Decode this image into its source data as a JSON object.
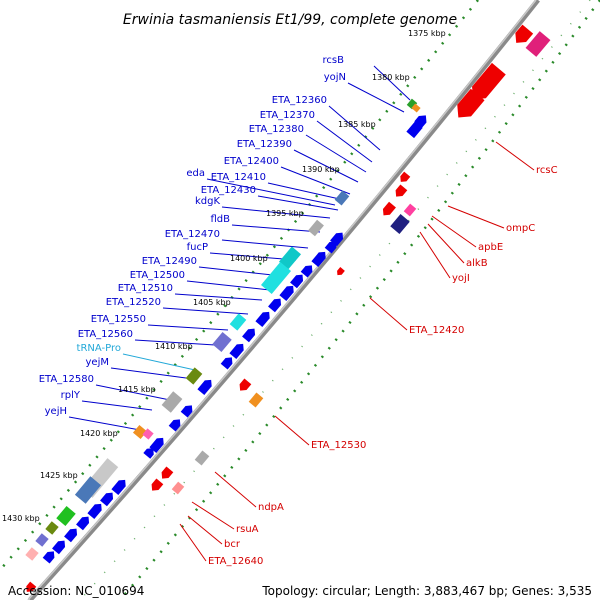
{
  "title": "Erwinia tasmaniensis Et1/99, complete genome",
  "accession": "Accession: NC_010694",
  "topology": "Topology: circular; Length: 3,883,467 bp; Genes: 3,535",
  "colors": {
    "forward": "#0000ee",
    "reverse": "#ee0000",
    "backbone": "#888888",
    "tick_dots": "#228822",
    "label_forward": "#0000cc",
    "label_reverse": "#d40000",
    "label_trna": "#22a8d8"
  },
  "kbp_ticks": [
    "1375 kbp",
    "1380 kbp",
    "1385 kbp",
    "1390 kbp",
    "1395 kbp",
    "1400 kbp",
    "1405 kbp",
    "1410 kbp",
    "1415 kbp",
    "1420 kbp",
    "1425 kbp",
    "1430 kbp"
  ],
  "forward_labels": [
    "rcsB",
    "yojN",
    "ETA_12360",
    "ETA_12370",
    "ETA_12380",
    "ETA_12390",
    "ETA_12400",
    "eda",
    "ETA_12410",
    "ETA_12430",
    "kdgK",
    "fldB",
    "ETA_12470",
    "fucP",
    "ETA_12490",
    "ETA_12500",
    "ETA_12510",
    "ETA_12520",
    "ETA_12550",
    "ETA_12560",
    "tRNA-Pro",
    "yejM",
    "ETA_12580",
    "rplY",
    "yejH"
  ],
  "reverse_labels": [
    "rcsC",
    "ompC",
    "apbE",
    "alkB",
    "yojI",
    "ETA_12420",
    "ETA_12530",
    "ndpA",
    "rsuA",
    "bcr",
    "ETA_12640"
  ]
}
